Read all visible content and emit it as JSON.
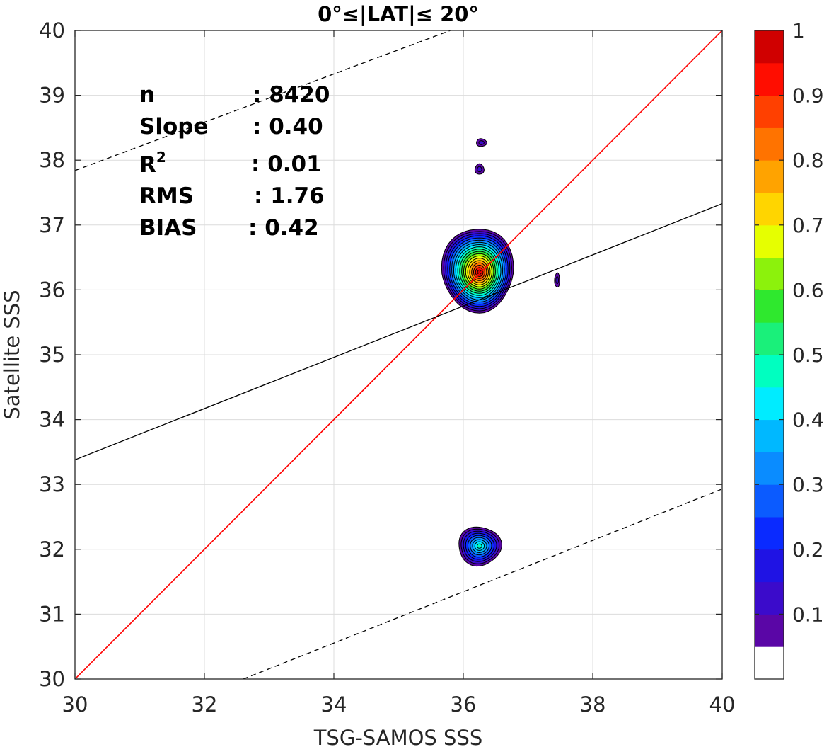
{
  "chart_data": {
    "type": "heatmap",
    "title": "0°≤|LAT|≤ 20°",
    "xlabel": "TSG-SAMOS SSS",
    "ylabel": "Satellite SSS",
    "xlim": [
      30,
      40
    ],
    "ylim": [
      30,
      40
    ],
    "x_ticks": [
      "30",
      "32",
      "34",
      "36",
      "38",
      "40"
    ],
    "x_tick_values": [
      30,
      32,
      34,
      36,
      38,
      40
    ],
    "y_ticks": [
      "30",
      "31",
      "32",
      "33",
      "34",
      "35",
      "36",
      "37",
      "38",
      "39",
      "40"
    ],
    "y_tick_values": [
      30,
      31,
      32,
      33,
      34,
      35,
      36,
      37,
      38,
      39,
      40
    ],
    "grid": true,
    "stats": {
      "n_label": "n",
      "n_value": ": 8420",
      "slope_label": "Slope",
      "slope_value": ": 0.40",
      "r2_label": "R",
      "r2_sup": "2",
      "r2_value": ": 0.01",
      "rms_label": "RMS",
      "rms_value": ": 1.76",
      "bias_label": "BIAS",
      "bias_value": ": 0.42"
    },
    "lines": {
      "one_to_one": {
        "color": "#ff0000",
        "points": [
          [
            30,
            30
          ],
          [
            40,
            40
          ]
        ]
      },
      "fit": {
        "color": "#000000",
        "slope": 0.4,
        "points": [
          [
            30,
            33.38
          ],
          [
            40,
            37.33
          ]
        ]
      },
      "upper_bound": {
        "style": "dashed",
        "points": [
          [
            30,
            37.84
          ],
          [
            35.8,
            40.0
          ]
        ]
      },
      "lower_bound": {
        "style": "dashed",
        "points": [
          [
            32.6,
            30.0
          ],
          [
            40,
            32.93
          ]
        ]
      }
    },
    "density_blobs": [
      {
        "cx": 36.25,
        "cy": 36.25,
        "rx_left": 0.58,
        "rx_right": 0.52,
        "ry_up": 0.72,
        "ry_down": 0.58,
        "peak": 0.95
      },
      {
        "cx": 36.25,
        "cy": 32.05,
        "rx_left": 0.33,
        "rx_right": 0.33,
        "ry_up": 0.3,
        "ry_down": 0.3,
        "peak": 0.45
      },
      {
        "cx": 36.28,
        "cy": 38.27,
        "rx_left": 0.08,
        "rx_right": 0.08,
        "ry_up": 0.06,
        "ry_down": 0.06,
        "peak": 0.1
      },
      {
        "cx": 36.25,
        "cy": 37.86,
        "rx_left": 0.07,
        "rx_right": 0.07,
        "ry_up": 0.08,
        "ry_down": 0.08,
        "peak": 0.1
      },
      {
        "cx": 37.45,
        "cy": 36.15,
        "rx_left": 0.04,
        "rx_right": 0.04,
        "ry_up": 0.11,
        "ry_down": 0.11,
        "peak": 0.1
      }
    ],
    "colorbar": {
      "range": [
        0,
        1
      ],
      "ticks": [
        "0.1",
        "0.2",
        "0.3",
        "0.4",
        "0.5",
        "0.6",
        "0.7",
        "0.8",
        "0.9",
        "1"
      ],
      "tick_values": [
        0.1,
        0.2,
        0.3,
        0.4,
        0.5,
        0.6,
        0.7,
        0.8,
        0.9,
        1.0
      ],
      "levels": 20,
      "colors": [
        "#ffffff",
        "#5a06a6",
        "#3b0bcb",
        "#1f13e4",
        "#0a2aff",
        "#0b5bff",
        "#0a8cff",
        "#00b8ff",
        "#00ecff",
        "#00ffc0",
        "#1af07a",
        "#2fe82e",
        "#8cf20c",
        "#e6ff00",
        "#ffd500",
        "#ffa300",
        "#ff7300",
        "#ff4000",
        "#ff0d00",
        "#d00000",
        "#7d0000"
      ]
    }
  }
}
